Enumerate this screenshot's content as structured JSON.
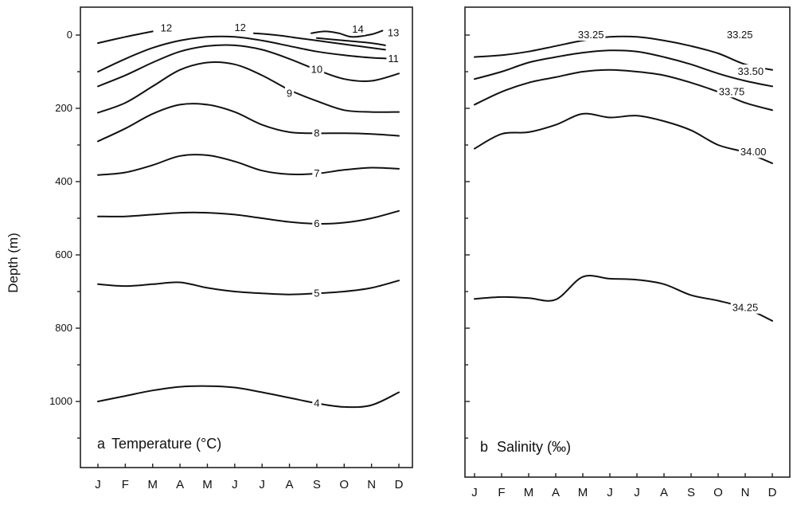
{
  "chart_data": [
    {
      "type": "line",
      "panel_letter": "a",
      "title": "Temperature (°C)",
      "ylabel": "Depth (m)",
      "xlabel": "",
      "x_ticks": [
        "J",
        "F",
        "M",
        "A",
        "M",
        "J",
        "J",
        "A",
        "S",
        "O",
        "N",
        "D"
      ],
      "y_ticks": [
        0,
        200,
        400,
        600,
        800,
        1000
      ],
      "ylim": [
        1160,
        -80
      ],
      "ylim_note": "",
      "series": [
        {
          "label": "4",
          "points": [
            [
              1,
              1000
            ],
            [
              2,
              985
            ],
            [
              3,
              970
            ],
            [
              4,
              960
            ],
            [
              5,
              958
            ],
            [
              6,
              962
            ],
            [
              7,
              975
            ],
            [
              8,
              990
            ],
            [
              9,
              1005
            ],
            [
              10,
              1015
            ],
            [
              11,
              1010
            ],
            [
              12,
              975
            ]
          ],
          "label_at": [
            9,
            1005
          ]
        },
        {
          "label": "5",
          "points": [
            [
              1,
              680
            ],
            [
              2,
              685
            ],
            [
              3,
              680
            ],
            [
              4,
              675
            ],
            [
              5,
              690
            ],
            [
              6,
              700
            ],
            [
              7,
              705
            ],
            [
              8,
              708
            ],
            [
              9,
              705
            ],
            [
              10,
              700
            ],
            [
              11,
              690
            ],
            [
              12,
              670
            ]
          ],
          "label_at": [
            9,
            705
          ]
        },
        {
          "label": "6",
          "points": [
            [
              1,
              495
            ],
            [
              2,
              495
            ],
            [
              3,
              490
            ],
            [
              4,
              485
            ],
            [
              5,
              485
            ],
            [
              6,
              490
            ],
            [
              7,
              500
            ],
            [
              8,
              510
            ],
            [
              9,
              515
            ],
            [
              10,
              512
            ],
            [
              11,
              500
            ],
            [
              12,
              480
            ]
          ],
          "label_at": [
            9,
            515
          ]
        },
        {
          "label": "7",
          "points": [
            [
              1,
              382
            ],
            [
              2,
              375
            ],
            [
              3,
              355
            ],
            [
              4,
              330
            ],
            [
              5,
              328
            ],
            [
              6,
              345
            ],
            [
              7,
              370
            ],
            [
              8,
              380
            ],
            [
              9,
              378
            ],
            [
              10,
              368
            ],
            [
              11,
              362
            ],
            [
              12,
              365
            ]
          ],
          "label_at": [
            9,
            378
          ]
        },
        {
          "label": "8",
          "points": [
            [
              1,
              290
            ],
            [
              2,
              255
            ],
            [
              3,
              215
            ],
            [
              4,
              190
            ],
            [
              5,
              190
            ],
            [
              6,
              210
            ],
            [
              7,
              245
            ],
            [
              8,
              265
            ],
            [
              9,
              268
            ],
            [
              10,
              268
            ],
            [
              11,
              270
            ],
            [
              12,
              275
            ]
          ],
          "label_at": [
            9,
            268
          ]
        },
        {
          "label": "9",
          "points": [
            [
              1,
              212
            ],
            [
              2,
              185
            ],
            [
              3,
              140
            ],
            [
              4,
              95
            ],
            [
              5,
              75
            ],
            [
              6,
              80
            ],
            [
              7,
              110
            ],
            [
              8,
              150
            ],
            [
              9,
              180
            ],
            [
              10,
              205
            ],
            [
              11,
              210
            ],
            [
              12,
              210
            ]
          ],
          "label_at": [
            8,
            160
          ]
        },
        {
          "label": "10",
          "points": [
            [
              1,
              140
            ],
            [
              2,
              110
            ],
            [
              3,
              75
            ],
            [
              4,
              45
            ],
            [
              5,
              30
            ],
            [
              6,
              28
            ],
            [
              7,
              40
            ],
            [
              8,
              65
            ],
            [
              9,
              95
            ],
            [
              10,
              120
            ],
            [
              11,
              125
            ],
            [
              12,
              105
            ]
          ],
          "label_at": [
            9,
            95
          ]
        },
        {
          "label": "11",
          "points": [
            [
              1,
              100
            ],
            [
              2,
              65
            ],
            [
              3,
              35
            ],
            [
              4,
              15
            ],
            [
              5,
              5
            ],
            [
              6,
              5
            ],
            [
              7,
              15
            ],
            [
              8,
              30
            ],
            [
              9,
              45
            ],
            [
              10,
              55
            ],
            [
              11,
              62
            ],
            [
              12,
              65
            ]
          ],
          "label_at": [
            11.8,
            65
          ]
        },
        {
          "label": "12",
          "points": [
            [
              1,
              22
            ],
            [
              2,
              5
            ],
            [
              3,
              -10
            ]
          ],
          "label_at": [
            3.5,
            -18
          ]
        },
        {
          "label": "12",
          "points": [
            [
              6.7,
              -5
            ],
            [
              7.5,
              0
            ],
            [
              8.5,
              10
            ],
            [
              9.5,
              20
            ],
            [
              10.5,
              30
            ],
            [
              11.5,
              40
            ]
          ],
          "label_at": [
            6.2,
            -20
          ]
        },
        {
          "label": "13",
          "points": [
            [
              9,
              8
            ],
            [
              10,
              15
            ],
            [
              11,
              22
            ],
            [
              11.5,
              28
            ]
          ],
          "label_at": [
            11.8,
            -5
          ]
        },
        {
          "label": "14",
          "points": [
            [
              8.8,
              -5
            ],
            [
              9.3,
              -10
            ],
            [
              9.8,
              -5
            ],
            [
              10.3,
              5
            ],
            [
              11,
              -2
            ],
            [
              11.4,
              -12
            ]
          ],
          "label_at": [
            10.5,
            -15
          ]
        }
      ]
    },
    {
      "type": "line",
      "panel_letter": "b",
      "title": "Salinity (‰)",
      "ylabel": "",
      "xlabel": "",
      "x_ticks": [
        "J",
        "F",
        "M",
        "A",
        "M",
        "J",
        "J",
        "A",
        "S",
        "O",
        "N",
        "D"
      ],
      "y_ticks": [
        0,
        200,
        400,
        600,
        800,
        1000
      ],
      "ylim": [
        1160,
        -80
      ],
      "series": [
        {
          "label": "33.25",
          "points": [
            [
              1,
              60
            ],
            [
              2,
              55
            ],
            [
              3,
              45
            ],
            [
              4,
              30
            ],
            [
              5,
              15
            ],
            [
              6,
              5
            ],
            [
              7,
              5
            ],
            [
              8,
              15
            ],
            [
              9,
              30
            ],
            [
              10,
              50
            ],
            [
              11,
              80
            ],
            [
              12,
              95
            ]
          ],
          "label_at": [
            5.3,
            0
          ]
        },
        {
          "label": "33.25",
          "points": [],
          "label_at": [
            10.8,
            0
          ]
        },
        {
          "label": "33.50",
          "points": [
            [
              1,
              120
            ],
            [
              2,
              100
            ],
            [
              3,
              75
            ],
            [
              4,
              60
            ],
            [
              5,
              48
            ],
            [
              6,
              42
            ],
            [
              7,
              45
            ],
            [
              8,
              60
            ],
            [
              9,
              80
            ],
            [
              10,
              105
            ],
            [
              11,
              125
            ],
            [
              12,
              140
            ]
          ],
          "label_at": [
            11.2,
            100
          ]
        },
        {
          "label": "33.75",
          "points": [
            [
              1,
              190
            ],
            [
              2,
              155
            ],
            [
              3,
              130
            ],
            [
              4,
              115
            ],
            [
              5,
              100
            ],
            [
              6,
              95
            ],
            [
              7,
              100
            ],
            [
              8,
              110
            ],
            [
              9,
              130
            ],
            [
              10,
              155
            ],
            [
              11,
              185
            ],
            [
              12,
              205
            ]
          ],
          "label_at": [
            10.5,
            155
          ]
        },
        {
          "label": "34.00",
          "points": [
            [
              1,
              310
            ],
            [
              2,
              270
            ],
            [
              3,
              265
            ],
            [
              4,
              245
            ],
            [
              5,
              215
            ],
            [
              6,
              225
            ],
            [
              7,
              220
            ],
            [
              8,
              235
            ],
            [
              9,
              260
            ],
            [
              10,
              300
            ],
            [
              11,
              320
            ],
            [
              12,
              350
            ]
          ],
          "label_at": [
            11.3,
            320
          ]
        },
        {
          "label": "34.25",
          "points": [
            [
              1,
              720
            ],
            [
              2,
              715
            ],
            [
              3,
              718
            ],
            [
              4,
              722
            ],
            [
              5,
              660
            ],
            [
              6,
              665
            ],
            [
              7,
              668
            ],
            [
              8,
              680
            ],
            [
              9,
              710
            ],
            [
              10,
              725
            ],
            [
              11,
              745
            ],
            [
              12,
              780
            ]
          ],
          "label_at": [
            11,
            745
          ]
        }
      ]
    }
  ]
}
